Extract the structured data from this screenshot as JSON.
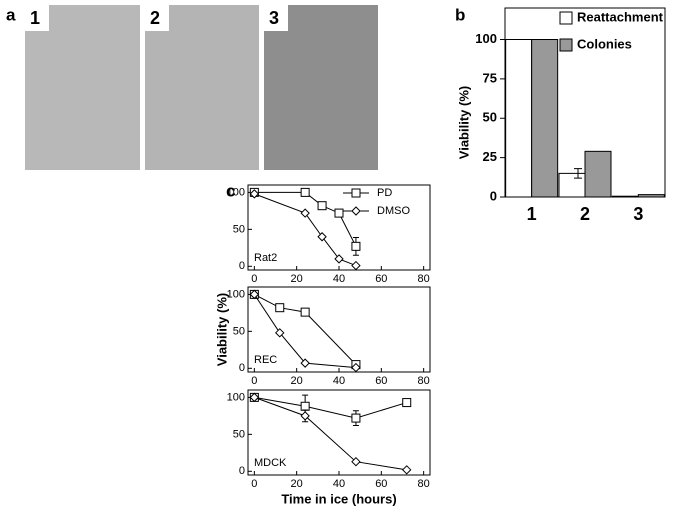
{
  "panel_a": {
    "label": "a",
    "images": [
      {
        "label": "1"
      },
      {
        "label": "2"
      },
      {
        "label": "3"
      }
    ]
  },
  "chart_data": [
    {
      "type": "bar",
      "panel_label": "b",
      "ylabel": "Viability (%)",
      "categories": [
        "1",
        "2",
        "3"
      ],
      "series": [
        {
          "name": "Reattachment",
          "color": "#ffffff",
          "values": [
            100,
            15,
            0.5
          ],
          "errors": [
            null,
            3,
            null
          ]
        },
        {
          "name": "Colonies",
          "color": "#999999",
          "values": [
            100,
            29,
            1.5
          ]
        }
      ],
      "ylim": [
        0,
        120
      ],
      "yticks": [
        0,
        25,
        50,
        75,
        100
      ]
    },
    {
      "type": "line",
      "panel_label": "c",
      "annotation": "Rat2",
      "series": [
        {
          "name": "PD",
          "marker": "square",
          "x": [
            0,
            24,
            32,
            40,
            48
          ],
          "values": [
            100,
            100,
            82,
            72,
            27
          ],
          "errors": [
            null,
            null,
            null,
            null,
            12
          ]
        },
        {
          "name": "DMSO",
          "marker": "diamond",
          "x": [
            0,
            24,
            32,
            40,
            48
          ],
          "values": [
            98,
            72,
            40,
            10,
            1
          ]
        }
      ],
      "xlim": [
        -3,
        83
      ],
      "xticks": [
        0,
        20,
        40,
        60,
        80
      ],
      "ylim": [
        -5,
        110
      ],
      "yticks": [
        0,
        50,
        100
      ]
    },
    {
      "type": "line",
      "annotation": "REC",
      "ylabel": "Viability (%)",
      "series": [
        {
          "marker": "square",
          "x": [
            0,
            12,
            24,
            48
          ],
          "values": [
            100,
            82,
            76,
            5
          ]
        },
        {
          "marker": "diamond",
          "x": [
            0,
            12,
            24,
            48
          ],
          "values": [
            100,
            48,
            7,
            1
          ]
        }
      ],
      "xlim": [
        -3,
        83
      ],
      "xticks": [
        0,
        20,
        40,
        60,
        80
      ],
      "ylim": [
        -5,
        110
      ],
      "yticks": [
        0,
        50,
        100
      ]
    },
    {
      "type": "line",
      "annotation": "MDCK",
      "xlabel": "Time in ice (hours)",
      "series": [
        {
          "marker": "square",
          "x": [
            0,
            24,
            48,
            72
          ],
          "values": [
            100,
            88,
            72,
            93
          ],
          "errors": [
            null,
            15,
            10,
            null
          ]
        },
        {
          "marker": "diamond",
          "x": [
            0,
            24,
            48,
            72
          ],
          "values": [
            100,
            75,
            13,
            2
          ],
          "errors": [
            null,
            8,
            null,
            null
          ]
        }
      ],
      "xlim": [
        -3,
        83
      ],
      "xticks": [
        0,
        20,
        40,
        60,
        80
      ],
      "ylim": [
        -5,
        110
      ],
      "yticks": [
        0,
        50,
        100
      ]
    }
  ]
}
